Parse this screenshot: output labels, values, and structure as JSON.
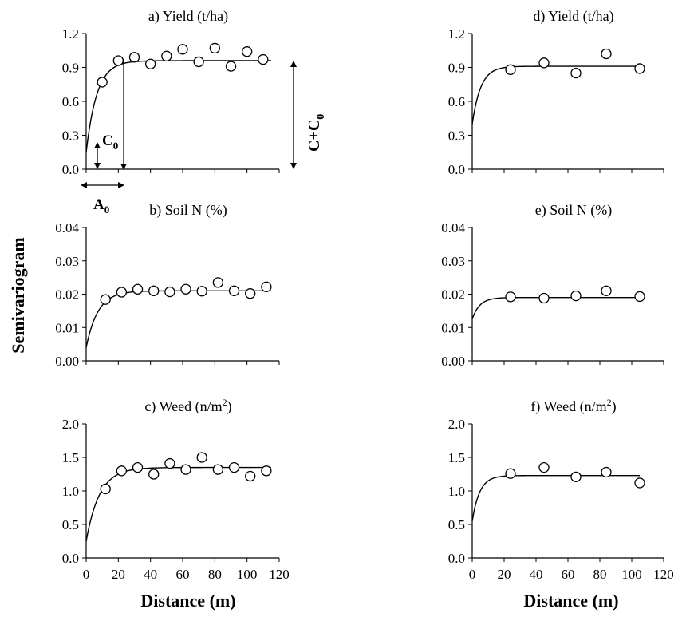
{
  "y_axis_label": "Semivariogram",
  "x_axis_labels": [
    "Distance (m)",
    "Distance (m)"
  ],
  "x_ticks": [
    "0",
    "20",
    "40",
    "60",
    "80",
    "100",
    "120"
  ],
  "annotations": {
    "c0": "C",
    "c0_sub": "0",
    "a0": "A",
    "a0_sub": "0",
    "cc0": "C+C",
    "cc0_sub": "0"
  },
  "chart_data": [
    {
      "id": "a",
      "type": "scatter",
      "title": "a) Yield (t/ha)",
      "xlim": [
        0,
        120
      ],
      "ylim": [
        0,
        1.2
      ],
      "yticks": [
        "0.0",
        "0.3",
        "0.6",
        "0.9",
        "1.2"
      ],
      "show_x_ticks": false,
      "points": [
        [
          10,
          0.77
        ],
        [
          20,
          0.96
        ],
        [
          30,
          0.99
        ],
        [
          40,
          0.93
        ],
        [
          50,
          1.0
        ],
        [
          60,
          1.06
        ],
        [
          70,
          0.95
        ],
        [
          80,
          1.07
        ],
        [
          90,
          0.91
        ],
        [
          100,
          1.04
        ],
        [
          110,
          0.97
        ]
      ],
      "fit": {
        "nugget": 0.15,
        "sill": 0.96,
        "range": 20,
        "end": 115
      }
    },
    {
      "id": "b",
      "type": "scatter",
      "title": "b) Soil N (%)",
      "xlim": [
        0,
        120
      ],
      "ylim": [
        0,
        0.04
      ],
      "yticks": [
        "0.00",
        "0.01",
        "0.02",
        "0.03",
        "0.04"
      ],
      "show_x_ticks": false,
      "points": [
        [
          12,
          0.0184
        ],
        [
          22,
          0.0206
        ],
        [
          32,
          0.0215
        ],
        [
          42,
          0.021
        ],
        [
          52,
          0.0207
        ],
        [
          62,
          0.0215
        ],
        [
          72,
          0.0209
        ],
        [
          82,
          0.0235
        ],
        [
          92,
          0.021
        ],
        [
          102,
          0.0202
        ],
        [
          112,
          0.0222
        ]
      ],
      "fit": {
        "nugget": 0.004,
        "sill": 0.021,
        "range": 22,
        "end": 115
      }
    },
    {
      "id": "c",
      "type": "scatter",
      "title": "c) Weed (n/m",
      "title_sup": "2",
      "title_end": ")",
      "xlim": [
        0,
        120
      ],
      "ylim": [
        0,
        2.0
      ],
      "yticks": [
        "0.0",
        "0.5",
        "1.0",
        "1.5",
        "2.0"
      ],
      "show_x_ticks": true,
      "points": [
        [
          12,
          1.03
        ],
        [
          22,
          1.3
        ],
        [
          32,
          1.35
        ],
        [
          42,
          1.25
        ],
        [
          52,
          1.41
        ],
        [
          62,
          1.32
        ],
        [
          72,
          1.5
        ],
        [
          82,
          1.32
        ],
        [
          92,
          1.35
        ],
        [
          102,
          1.22
        ],
        [
          112,
          1.3
        ]
      ],
      "fit": {
        "nugget": 0.25,
        "sill": 1.35,
        "range": 25,
        "end": 115
      }
    },
    {
      "id": "d",
      "type": "scatter",
      "title": "d) Yield (t/ha)",
      "xlim": [
        0,
        120
      ],
      "ylim": [
        0,
        1.2
      ],
      "yticks": [
        "0.0",
        "0.3",
        "0.6",
        "0.9",
        "1.2"
      ],
      "show_x_ticks": false,
      "points": [
        [
          24,
          0.88
        ],
        [
          45,
          0.94
        ],
        [
          65,
          0.85
        ],
        [
          84,
          1.02
        ],
        [
          105,
          0.89
        ]
      ],
      "fit": {
        "nugget": 0.4,
        "sill": 0.91,
        "range": 16,
        "end": 105
      }
    },
    {
      "id": "e",
      "type": "scatter",
      "title": "e) Soil N (%)",
      "xlim": [
        0,
        120
      ],
      "ylim": [
        0,
        0.04
      ],
      "yticks": [
        "0.00",
        "0.01",
        "0.02",
        "0.03",
        "0.04"
      ],
      "show_x_ticks": false,
      "points": [
        [
          24,
          0.0192
        ],
        [
          45,
          0.0188
        ],
        [
          65,
          0.0195
        ],
        [
          84,
          0.021
        ],
        [
          105,
          0.0193
        ]
      ],
      "fit": {
        "nugget": 0.0125,
        "sill": 0.019,
        "range": 14,
        "end": 105
      }
    },
    {
      "id": "f",
      "type": "scatter",
      "title": "f) Weed (n/m",
      "title_sup": "2",
      "title_end": ")",
      "xlim": [
        0,
        120
      ],
      "ylim": [
        0,
        2.0
      ],
      "yticks": [
        "0.0",
        "0.5",
        "1.0",
        "1.5",
        "2.0"
      ],
      "show_x_ticks": true,
      "points": [
        [
          24,
          1.26
        ],
        [
          45,
          1.35
        ],
        [
          65,
          1.21
        ],
        [
          84,
          1.28
        ],
        [
          105,
          1.12
        ]
      ],
      "fit": {
        "nugget": 0.55,
        "sill": 1.23,
        "range": 14,
        "end": 105
      }
    }
  ]
}
